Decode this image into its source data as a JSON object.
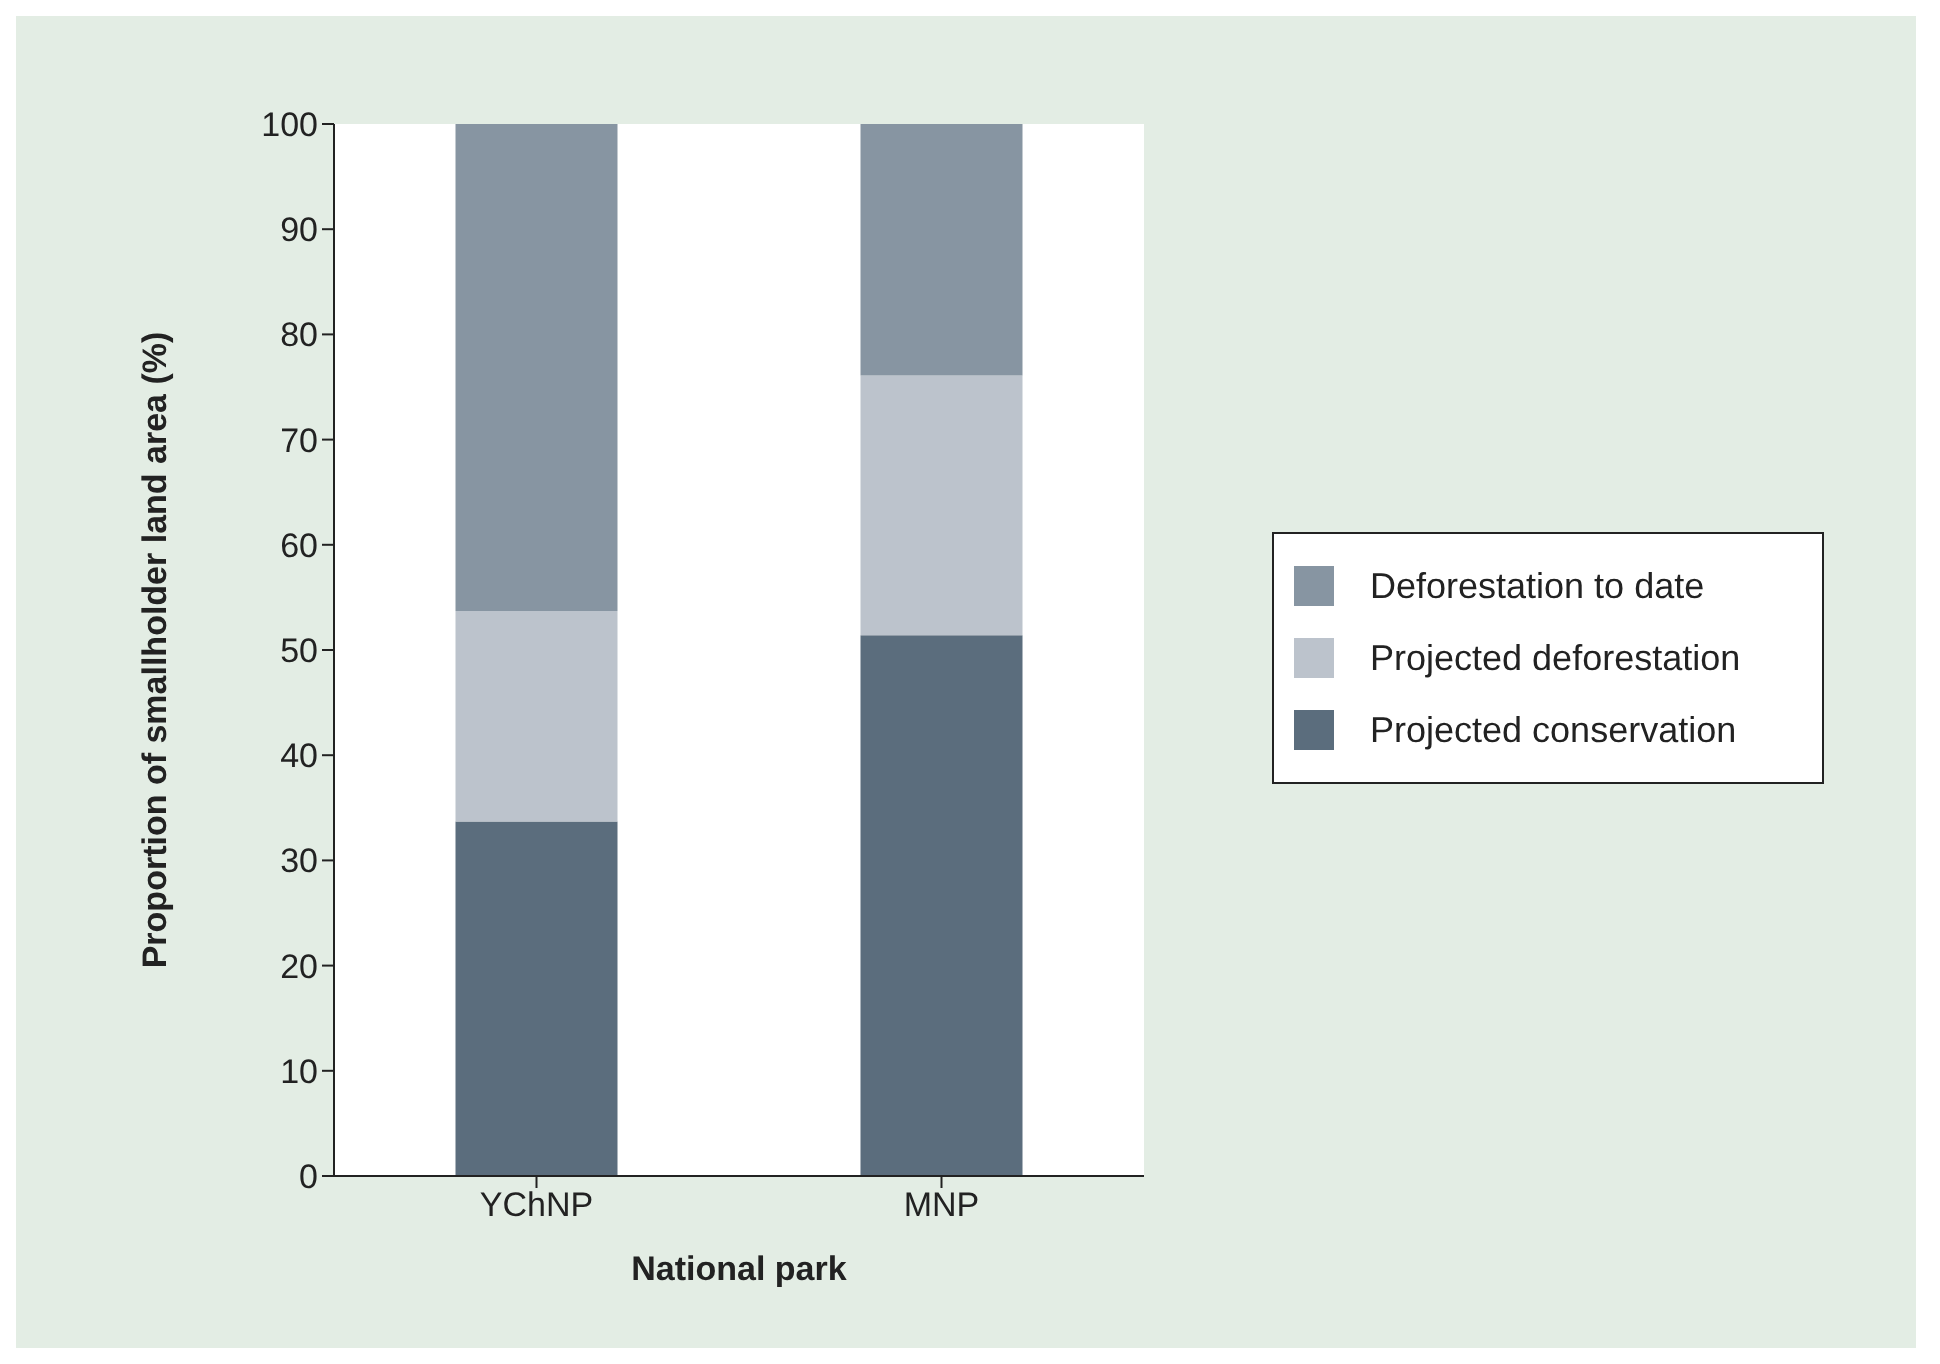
{
  "chart_data": {
    "type": "bar",
    "xlabel": "National park",
    "ylabel": "Proportion of smallholder land area (%)",
    "categories": [
      "YChNP",
      "MNP"
    ],
    "stacked": true,
    "series": [
      {
        "name": "Projected conservation",
        "color": "#5b6d7d",
        "values": [
          33.7,
          51.4
        ]
      },
      {
        "name": "Projected deforestation",
        "color": "#bcc3cc",
        "values": [
          20.0,
          24.7
        ]
      },
      {
        "name": "Deforestation to date",
        "color": "#8795a2",
        "values": [
          46.3,
          23.9
        ]
      }
    ],
    "ylim": [
      0,
      100
    ],
    "yticks": [
      0,
      10,
      20,
      30,
      40,
      50,
      60,
      70,
      80,
      90,
      100
    ],
    "grid": false,
    "legend": "right"
  }
}
